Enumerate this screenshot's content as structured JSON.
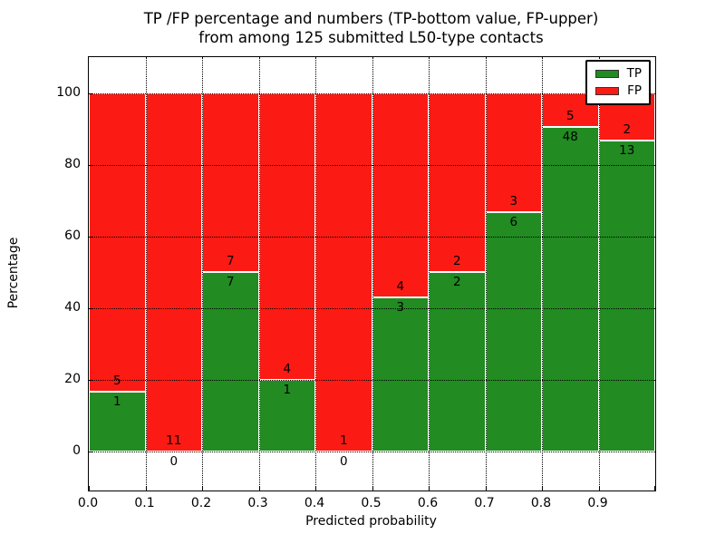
{
  "title": {
    "line1": "TP /FP percentage and numbers (TP-bottom value, FP-upper)",
    "line2": "from among 125 submitted L50-type contacts"
  },
  "axes": {
    "xlabel": "Predicted probability",
    "ylabel": "Percentage",
    "x_tick_labels": [
      "0.0",
      "0.1",
      "0.2",
      "0.3",
      "0.4",
      "0.5",
      "0.6",
      "0.7",
      "0.8",
      "0.9"
    ],
    "y_tick_labels": [
      "0",
      "20",
      "40",
      "60",
      "80",
      "100"
    ],
    "y_tick_values": [
      0,
      20,
      40,
      60,
      80,
      100
    ],
    "xlim": [
      0.0,
      1.0
    ],
    "ylim": [
      -11,
      110
    ],
    "grid": "dotted, at every 0.1 on x and every 20 on y"
  },
  "legend": {
    "position": "upper right",
    "items": [
      {
        "label": "TP",
        "color": "#228b22"
      },
      {
        "label": "FP",
        "color": "#fb1b14"
      }
    ]
  },
  "colors": {
    "tp_green": "#228b22",
    "fp_red": "#fb1b14",
    "bar_edge": "#ffffff",
    "grid": "#000000"
  },
  "chart_data": {
    "type": "bar",
    "stacked": true,
    "normalized_to": 100,
    "total_contacts": 125,
    "bin_width": 0.1,
    "bin_starts": [
      0.0,
      0.1,
      0.2,
      0.3,
      0.4,
      0.5,
      0.6,
      0.7,
      0.8,
      0.9
    ],
    "categories": [
      "0.0-0.1",
      "0.1-0.2",
      "0.2-0.3",
      "0.3-0.4",
      "0.4-0.5",
      "0.5-0.6",
      "0.6-0.7",
      "0.7-0.8",
      "0.8-0.9",
      "0.9-1.0"
    ],
    "series": [
      {
        "name": "TP",
        "counts": [
          1,
          0,
          7,
          1,
          0,
          3,
          2,
          6,
          48,
          13
        ],
        "color": "#228b22"
      },
      {
        "name": "FP",
        "counts": [
          5,
          11,
          7,
          4,
          1,
          4,
          2,
          3,
          5,
          2
        ],
        "color": "#fb1b14"
      }
    ],
    "tp_percent": [
      16.67,
      0.0,
      50.0,
      20.0,
      0.0,
      42.86,
      50.0,
      66.67,
      90.57,
      86.67
    ],
    "title": "TP /FP percentage and numbers (TP-bottom value, FP-upper) from among 125 submitted L50-type contacts",
    "xlabel": "Predicted probability",
    "ylabel": "Percentage"
  }
}
